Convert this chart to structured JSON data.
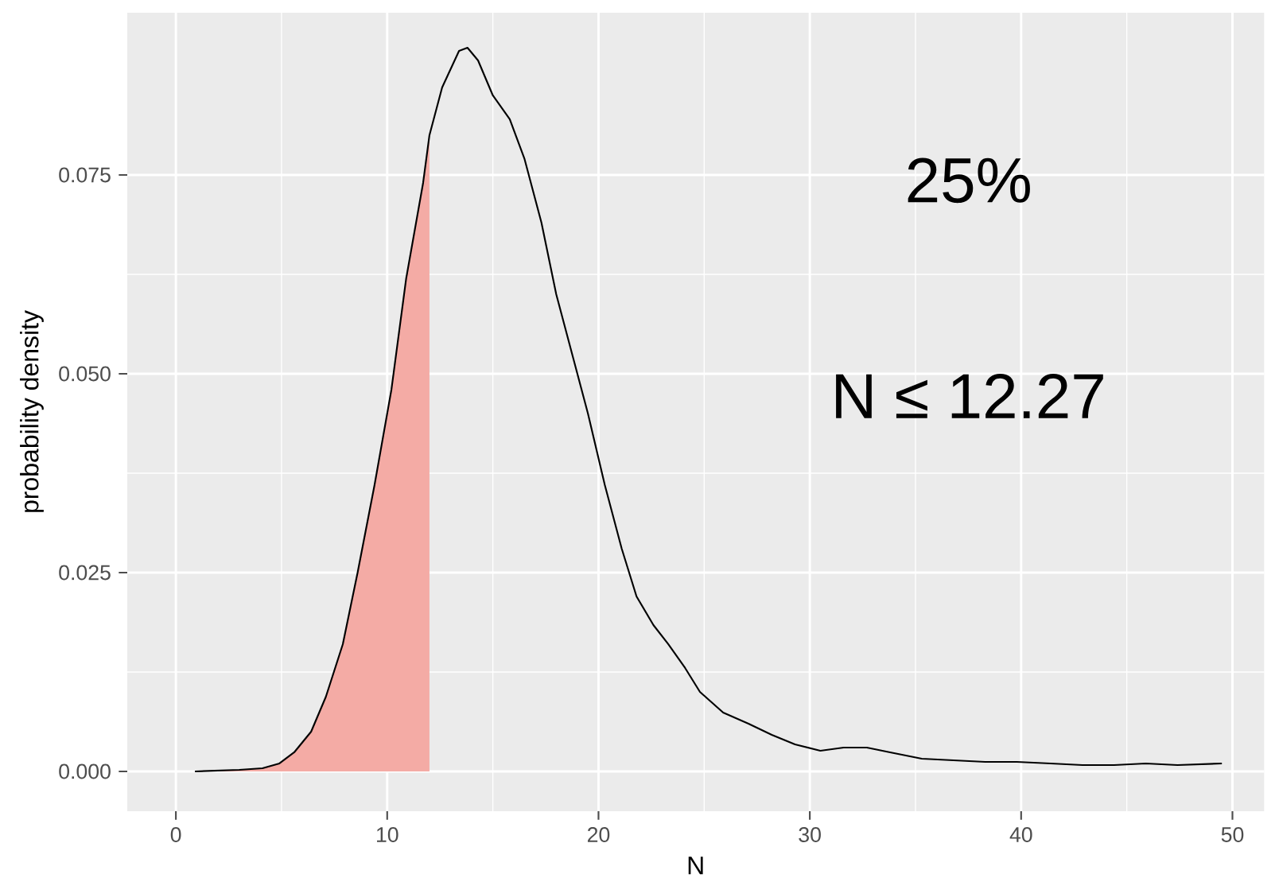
{
  "chart_data": {
    "type": "line",
    "xlabel": "N",
    "ylabel": "probability density",
    "xlim": [
      -2.3,
      51.5
    ],
    "ylim": [
      -0.005,
      0.0954
    ],
    "xticks": [
      0,
      10,
      20,
      30,
      40,
      50
    ],
    "yticks": [
      {
        "value": 0,
        "label": "0.000"
      },
      {
        "value": 0.025,
        "label": "0.025"
      },
      {
        "value": 0.05,
        "label": "0.050"
      },
      {
        "value": 0.075,
        "label": "0.075"
      }
    ],
    "grid": true,
    "marker": "none",
    "line_style": "solid",
    "annotations": [
      "25%",
      "N ≤ 12.27"
    ],
    "series": [
      {
        "type": "area",
        "color": "#f4aba5",
        "x": [
          0.9,
          3.0,
          4.1,
          4.9,
          5.6,
          6.4,
          7.1,
          7.9,
          8.6,
          9.4,
          10.2,
          10.9,
          11.7,
          12.0
        ],
        "values": [
          0,
          0.0002,
          0.0004,
          0.001,
          0.0024,
          0.005,
          0.0094,
          0.016,
          0.025,
          0.036,
          0.048,
          0.062,
          0.074,
          0.08
        ]
      },
      {
        "color": "#000000",
        "x": [
          0.9,
          3.0,
          4.1,
          4.9,
          5.6,
          6.4,
          7.1,
          7.9,
          8.6,
          9.4,
          10.2,
          10.9,
          11.7,
          12.0,
          12.6,
          13.4,
          13.8,
          14.3,
          15.0,
          15.8,
          16.5,
          17.3,
          18.0,
          18.8,
          19.5,
          20.3,
          21.1,
          21.8,
          22.6,
          23.3,
          24.1,
          24.8,
          25.9,
          27.1,
          28.2,
          29.3,
          30.5,
          31.6,
          32.7,
          33.8,
          35.3,
          36.8,
          38.3,
          39.8,
          41.4,
          42.9,
          44.4,
          45.9,
          47.4,
          49.5
        ],
        "values": [
          0,
          0.0002,
          0.0004,
          0.001,
          0.0024,
          0.005,
          0.0094,
          0.016,
          0.025,
          0.036,
          0.048,
          0.062,
          0.074,
          0.08,
          0.086,
          0.0906,
          0.091,
          0.0894,
          0.085,
          0.082,
          0.077,
          0.069,
          0.06,
          0.052,
          0.045,
          0.036,
          0.028,
          0.022,
          0.0184,
          0.016,
          0.013,
          0.01,
          0.0074,
          0.006,
          0.0046,
          0.0034,
          0.0026,
          0.003,
          0.003,
          0.0024,
          0.0016,
          0.0014,
          0.0012,
          0.0012,
          0.001,
          0.0008,
          0.0008,
          0.001,
          0.0008,
          0.001
        ]
      }
    ]
  }
}
